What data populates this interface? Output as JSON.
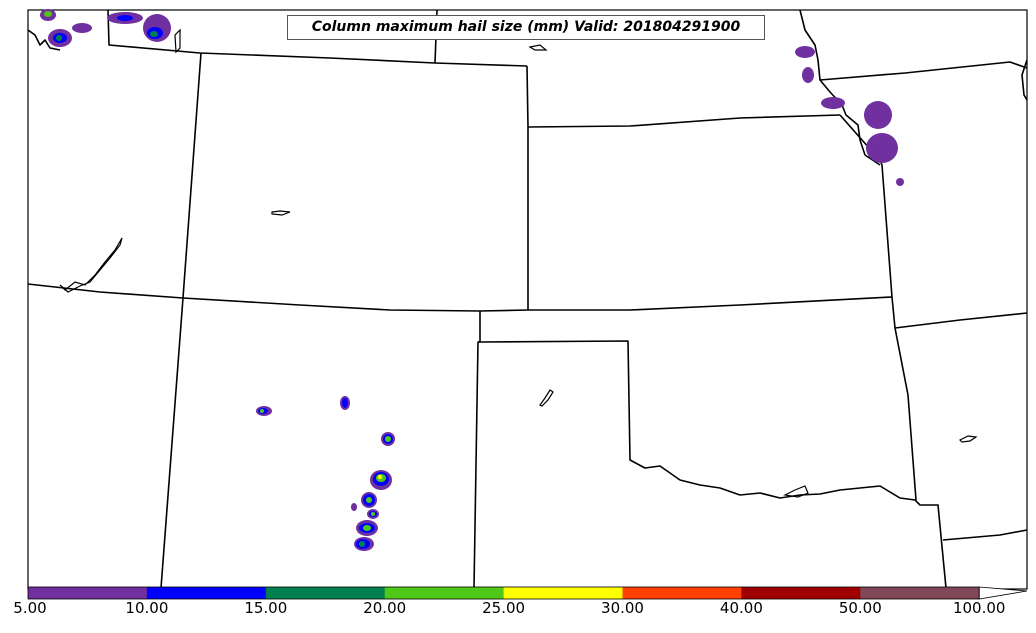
{
  "map": {
    "title": "Column maximum hail size (mm) Valid: 201804291900"
  },
  "colorbar": {
    "segments": [
      {
        "from": "5.00",
        "to": "10.00",
        "color": "#7030a0"
      },
      {
        "from": "10.00",
        "to": "15.00",
        "color": "#0000ff"
      },
      {
        "from": "15.00",
        "to": "20.00",
        "color": "#008050"
      },
      {
        "from": "20.00",
        "to": "25.00",
        "color": "#50c818"
      },
      {
        "from": "25.00",
        "to": "30.00",
        "color": "#ffff00"
      },
      {
        "from": "30.00",
        "to": "40.00",
        "color": "#ff4000"
      },
      {
        "from": "40.00",
        "to": "50.00",
        "color": "#a00000"
      },
      {
        "from": "50.00",
        "to": "100.00",
        "color": "#804858"
      }
    ],
    "tick_labels": [
      "5.00",
      "10.00",
      "15.00",
      "20.00",
      "25.00",
      "30.00",
      "40.00",
      "50.00",
      "100.00"
    ],
    "extend": "max"
  }
}
